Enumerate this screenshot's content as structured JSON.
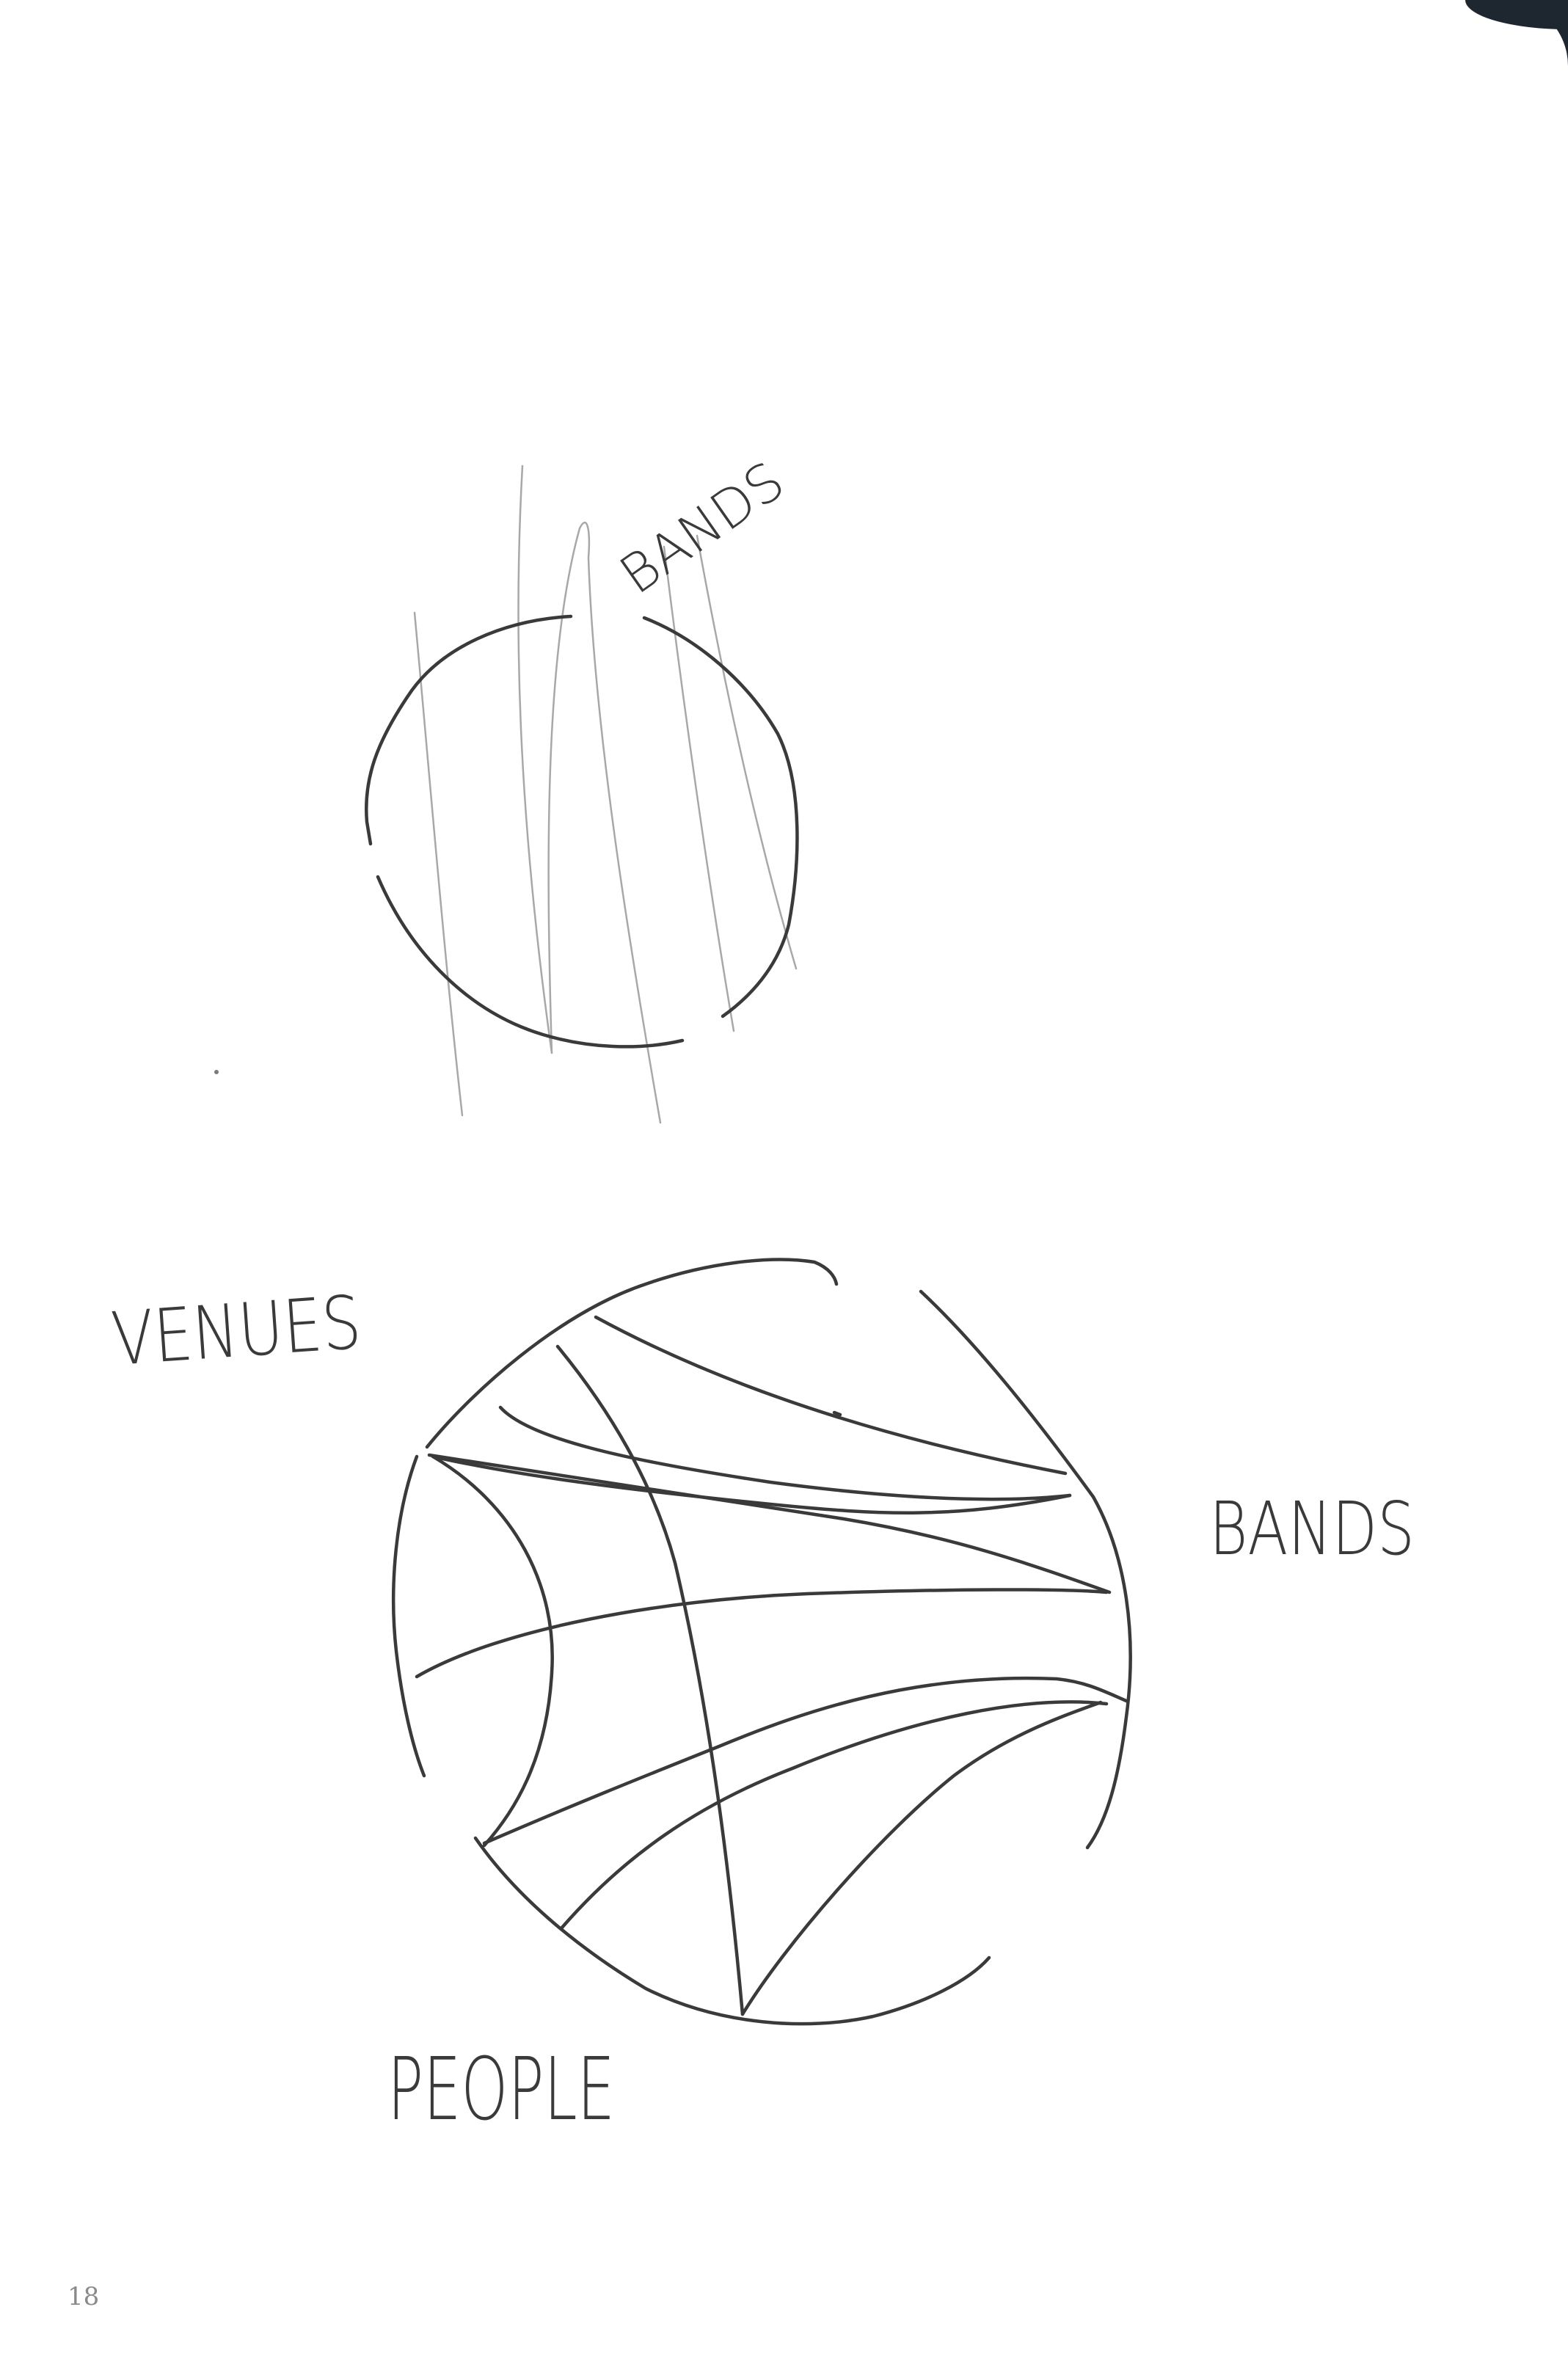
{
  "diagram": {
    "upper_circle": {
      "label": "BANDS"
    },
    "lower_circle": {
      "labels": {
        "venues": "VENUES",
        "bands": "BANDS",
        "people": "PEOPLE"
      }
    }
  },
  "page": {
    "number": "18"
  },
  "colors": {
    "ink": "#3a3a3a",
    "faint_ink": "#a8a8a8",
    "paper": "#ffffff",
    "background": "#1e2630"
  }
}
